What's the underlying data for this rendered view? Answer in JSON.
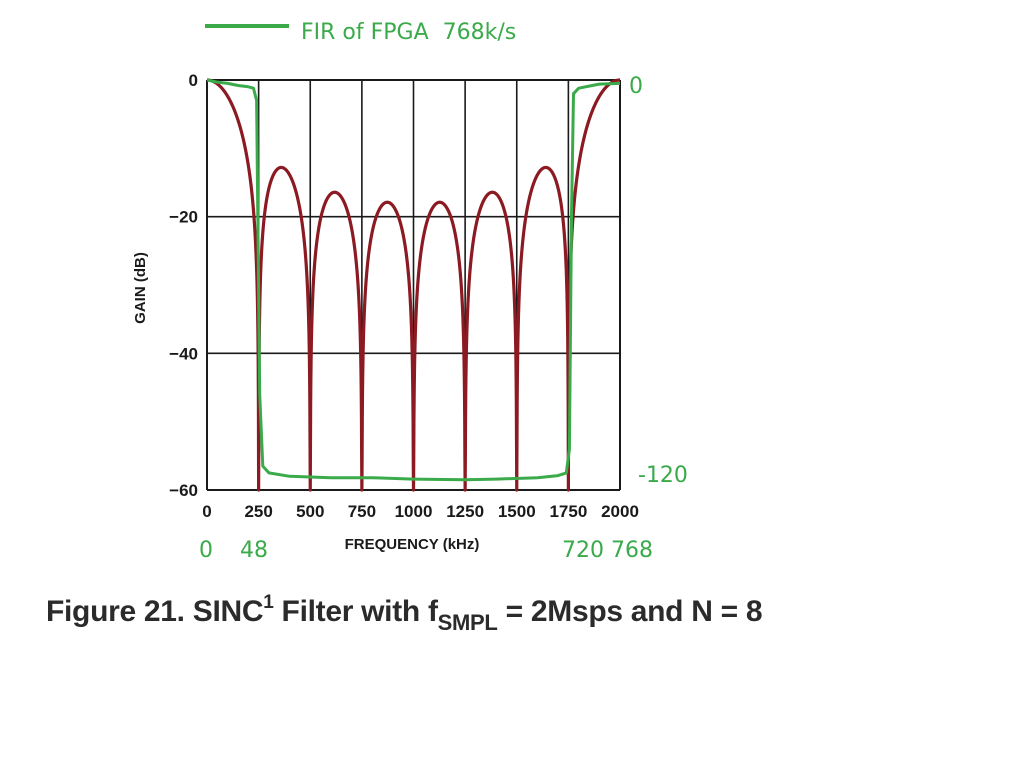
{
  "chart_data": {
    "type": "line",
    "xlabel": "FREQUENCY (kHz)",
    "ylabel": "GAIN (dB)",
    "xlim": [
      0,
      2000
    ],
    "ylim": [
      -60,
      0
    ],
    "x_ticks": [
      "0",
      "250",
      "500",
      "750",
      "1000",
      "1250",
      "1500",
      "1750",
      "2000"
    ],
    "y_ticks": [
      "0",
      "−20",
      "−40",
      "−60"
    ],
    "grid": true,
    "series": [
      {
        "name": "",
        "color": "#8b1a22",
        "formula": "sinc1 filter, N = 8, fSMPL = 2Msps; nulls at multiples of 250 kHz",
        "x": [
          0,
          50,
          100,
          150,
          200,
          250,
          300,
          350,
          400,
          450,
          500,
          550,
          600,
          650,
          700,
          750,
          800,
          850,
          900,
          950,
          1000,
          1050,
          1100,
          1150,
          1200,
          1250,
          1300,
          1350,
          1400,
          1450,
          1500,
          1550,
          1600,
          1650,
          1700,
          1750,
          1800,
          1850,
          1900,
          1950,
          2000
        ],
        "y": [
          0,
          -0.6,
          -2.5,
          -6.3,
          -14.5,
          -60,
          -16.0,
          -12.8,
          -14.2,
          -22.0,
          -60,
          -20.2,
          -16.4,
          -17.5,
          -24.0,
          -60,
          -22.0,
          -17.9,
          -19.0,
          -26.0,
          -60,
          -26.0,
          -19.0,
          -17.9,
          -22.0,
          -60,
          -24.0,
          -17.5,
          -16.4,
          -20.2,
          -60,
          -22.0,
          -14.2,
          -12.8,
          -16.0,
          -60,
          -14.5,
          -6.3,
          -2.5,
          -0.6,
          0
        ]
      },
      {
        "name": "FIR of FPGA  768k/s",
        "color": "#3aaa4a",
        "x": [
          0,
          50,
          100,
          150,
          200,
          225,
          240,
          255,
          270,
          300,
          400,
          600,
          800,
          1000,
          1250,
          1400,
          1600,
          1700,
          1740,
          1755,
          1765,
          1775,
          1800,
          1850,
          1900,
          2000
        ],
        "y": [
          0,
          -0.3,
          -0.5,
          -0.8,
          -1.0,
          -1.2,
          -3.0,
          -46.0,
          -56.5,
          -57.5,
          -58.0,
          -58.2,
          -58.2,
          -58.4,
          -58.5,
          -58.4,
          -58.2,
          -57.9,
          -57.5,
          -54.0,
          -20.0,
          -2.0,
          -1.2,
          -0.9,
          -0.6,
          -0.5
        ]
      }
    ],
    "annotations": {
      "gain_top": "0",
      "gain_bottom": "-120",
      "freq_labels": [
        "0",
        "48",
        "720 768"
      ]
    },
    "caption": {
      "prefix": "Figure 21. SINC",
      "sup": "1",
      "mid": " Filter with f",
      "sub": "SMPL",
      "suffix": " = 2Msps and N = 8"
    }
  }
}
